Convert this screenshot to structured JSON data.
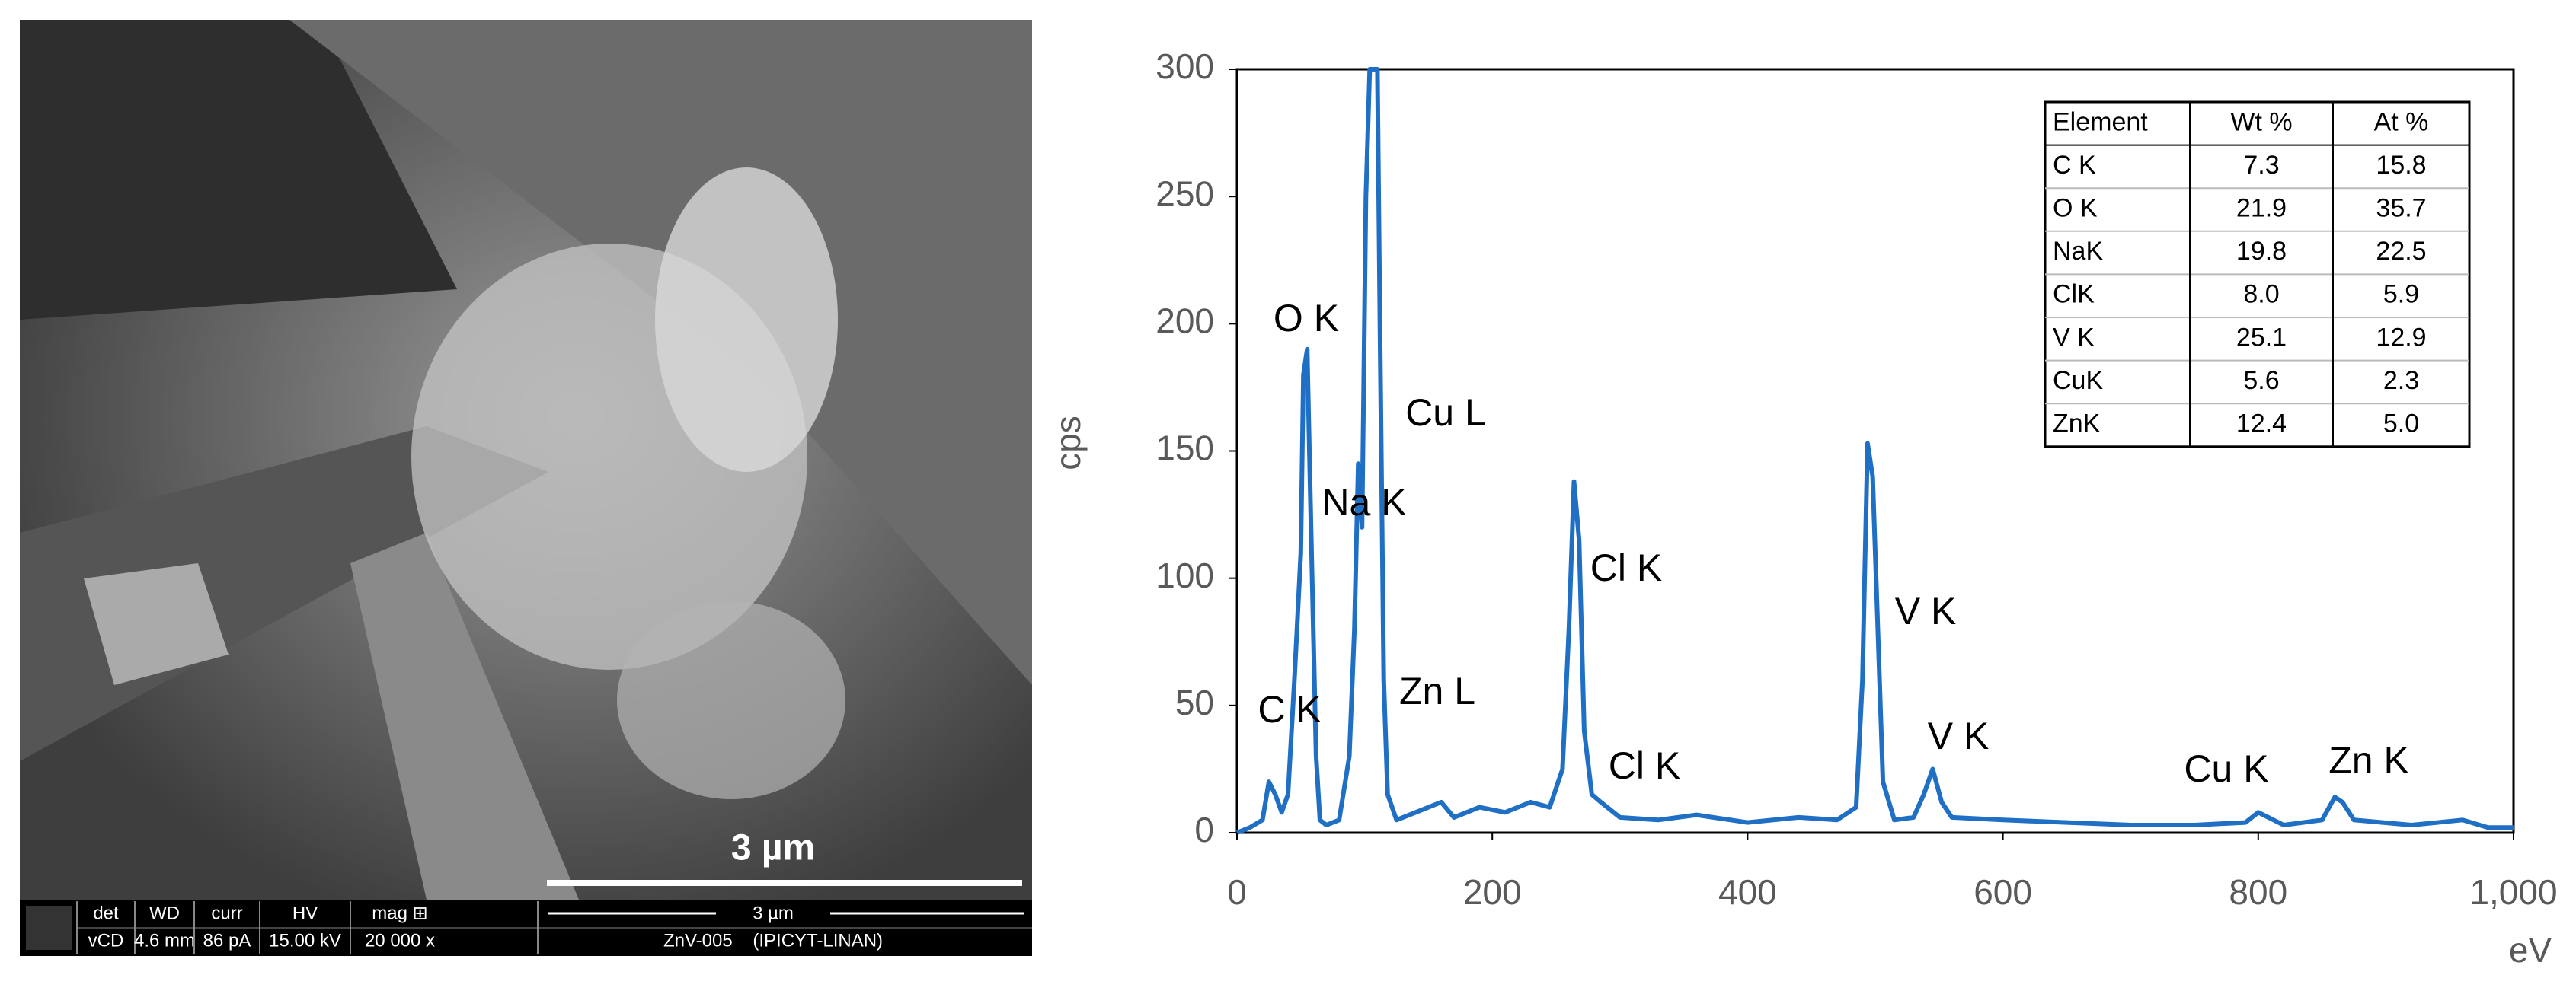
{
  "sem": {
    "scale_label": "3 µm",
    "info": {
      "headers": [
        "det",
        "WD",
        "curr",
        "HV",
        "mag ⊞"
      ],
      "values": [
        "vCD",
        "4.6 mm",
        "86 pA",
        "15.00 kV",
        "20 000 x"
      ],
      "scale": "3 µm",
      "sample": "ZnV-005    (IPICYT-LINAN)"
    }
  },
  "chart_data": {
    "type": "line",
    "x_label": "eV",
    "y_label": "cps",
    "x": [
      0,
      10,
      20,
      25,
      30,
      35,
      40,
      45,
      50,
      52,
      55,
      58,
      62,
      65,
      70,
      80,
      88,
      92,
      95,
      98,
      101,
      104,
      110,
      112,
      115,
      118,
      125,
      140,
      160,
      170,
      190,
      210,
      230,
      245,
      255,
      260,
      264,
      268,
      272,
      278,
      285,
      300,
      330,
      360,
      400,
      440,
      470,
      485,
      490,
      494,
      498,
      502,
      506,
      515,
      530,
      538,
      545,
      552,
      560,
      600,
      650,
      700,
      750,
      790,
      800,
      808,
      820,
      850,
      860,
      866,
      875,
      920,
      960,
      980,
      1000
    ],
    "values": [
      0,
      2,
      5,
      20,
      15,
      8,
      15,
      60,
      110,
      180,
      190,
      120,
      30,
      5,
      3,
      5,
      30,
      80,
      145,
      120,
      250,
      300,
      300,
      200,
      60,
      15,
      5,
      8,
      12,
      6,
      10,
      8,
      12,
      10,
      25,
      80,
      138,
      115,
      40,
      15,
      12,
      6,
      5,
      7,
      4,
      6,
      5,
      10,
      60,
      153,
      140,
      80,
      20,
      5,
      6,
      15,
      25,
      12,
      6,
      5,
      4,
      3,
      3,
      4,
      8,
      6,
      3,
      5,
      14,
      12,
      5,
      3,
      5,
      2,
      2
    ],
    "color": "#1f6fc5",
    "xlim": [
      0,
      1000
    ],
    "xticks": [
      0,
      200,
      400,
      600,
      800,
      {
        "value": 1000,
        "label": "1,000"
      }
    ],
    "ylim": [
      0,
      300
    ],
    "yticks": [
      0,
      50,
      100,
      150,
      200,
      250,
      300
    ],
    "annotations": [
      "O K",
      "Cu L",
      "Na K",
      "Cl K",
      "V K",
      "C K",
      "Zn L",
      "Cl K",
      "V K",
      "Cu K",
      "Zn K"
    ],
    "table": {
      "columns": [
        "Element",
        "Wt %",
        "At %"
      ],
      "rows": [
        [
          "C K",
          "7.3",
          "15.8"
        ],
        [
          "O K",
          "21.9",
          "35.7"
        ],
        [
          "NaK",
          "19.8",
          "22.5"
        ],
        [
          "ClK",
          "8.0",
          "5.9"
        ],
        [
          "V K",
          "25.1",
          "12.9"
        ],
        [
          "CuK",
          "5.6",
          "2.3"
        ],
        [
          "ZnK",
          "12.4",
          "5.0"
        ]
      ]
    }
  }
}
